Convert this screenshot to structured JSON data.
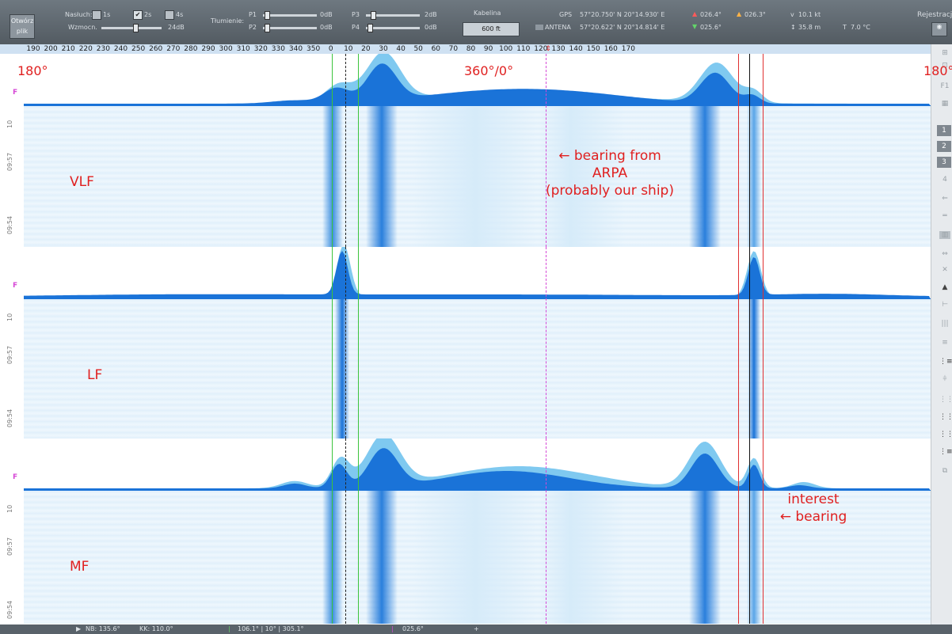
{
  "toolbar": {
    "open_file": "Otwórz plik",
    "averaging_label": "Nasłuch:",
    "checkboxes": [
      {
        "label": "1s",
        "checked": false
      },
      {
        "label": "2s",
        "checked": true
      },
      {
        "label": "4s",
        "checked": false
      }
    ],
    "gain_label": "Wzmocn.",
    "gain_value": "24dB",
    "damping_label": "Tłumienie:",
    "p1_label": "P1",
    "p1_value": "0dB",
    "p2_label": "P2",
    "p2_value": "0dB",
    "p3_label": "P3",
    "p3_value": "2dB",
    "p4_label": "P4",
    "p4_value": "0dB",
    "cable_label": "Kabelina",
    "cable_value": "600 ft",
    "gps_label": "GPS",
    "gps_position": "57°20.750' N 20°14.930' E",
    "antenna_label": "ANTENA",
    "antenna_position": "57°20.622' N 20°14.814' E",
    "heading_red": "026.4°",
    "heading_orange": "026.3°",
    "heading_green": "025.6°",
    "speed": "10.1 kt",
    "depth": "35.8 m",
    "temperature": "7.0 °C",
    "record_label": "Rejestracj"
  },
  "scale": {
    "ticks": [
      "190",
      "200",
      "210",
      "220",
      "230",
      "240",
      "250",
      "260",
      "270",
      "280",
      "290",
      "300",
      "310",
      "320",
      "330",
      "340",
      "350",
      "0",
      "10",
      "20",
      "30",
      "40",
      "50",
      "60",
      "70",
      "80",
      "90",
      "100",
      "110",
      "120",
      "130",
      "140",
      "150",
      "160",
      "170"
    ]
  },
  "annotations": {
    "left_deg": "180°",
    "center_deg": "360°/0°",
    "right_deg": "180°",
    "arpa_line1": "← bearing from",
    "arpa_line2": "ARPA",
    "arpa_line3": "(probably our ship)",
    "interest_line1": "interest",
    "interest_line2": "← bearing"
  },
  "panels": [
    {
      "band": "VLF",
      "f_mark": "F",
      "times": [
        "10",
        "09:57",
        "09:54"
      ]
    },
    {
      "band": "LF",
      "f_mark": "F",
      "times": [
        "10",
        "09:57",
        "09:54"
      ]
    },
    {
      "band": "MF",
      "f_mark": "F",
      "times": [
        "10",
        "09:57",
        "09:54"
      ]
    }
  ],
  "side": {
    "buttons": [
      "1",
      "2",
      "3"
    ]
  },
  "status": {
    "nb": "NB: 135.6°",
    "kk": "KK: 110.0°",
    "bearings": "106.1° | 10° | 305.1°",
    "heading": "025.6°"
  },
  "colors": {
    "spectrum_dark": "#1a73d8",
    "spectrum_light": "#7fc9f0",
    "marker_green": "#3cc43c",
    "marker_red": "#e03030",
    "annotation_red": "#e02020"
  }
}
